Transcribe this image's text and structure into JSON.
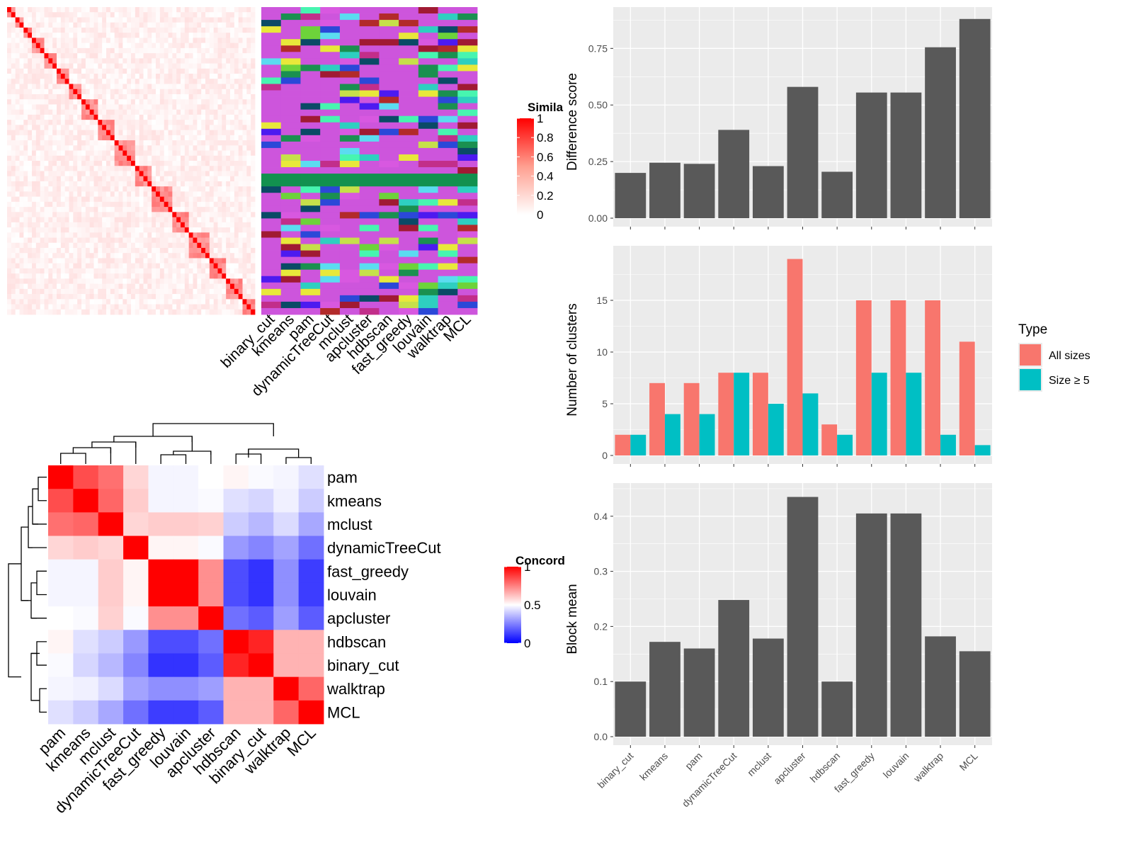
{
  "methods_order": [
    "binary_cut",
    "kmeans",
    "pam",
    "dynamicTreeCut",
    "mclust",
    "apcluster",
    "hdbscan",
    "fast_greedy",
    "louvain",
    "walktrap",
    "MCL"
  ],
  "similarity_legend": {
    "title": "Simila",
    "ticks": [
      "1",
      "0.8",
      "0.6",
      "0.4",
      "0.2",
      "0"
    ]
  },
  "concordance": {
    "legend_title": "Concord",
    "legend_ticks": [
      "1",
      "0.5",
      "0"
    ],
    "labels": [
      "pam",
      "kmeans",
      "mclust",
      "dynamicTreeCut",
      "fast_greedy",
      "louvain",
      "apcluster",
      "hdbscan",
      "binary_cut",
      "walktrap",
      "MCL"
    ],
    "matrix": [
      [
        1.0,
        0.85,
        0.78,
        0.58,
        0.48,
        0.48,
        0.5,
        0.52,
        0.49,
        0.48,
        0.44
      ],
      [
        0.85,
        1.0,
        0.8,
        0.6,
        0.48,
        0.48,
        0.49,
        0.44,
        0.42,
        0.47,
        0.4
      ],
      [
        0.78,
        0.8,
        1.0,
        0.58,
        0.6,
        0.6,
        0.59,
        0.4,
        0.36,
        0.43,
        0.33
      ],
      [
        0.58,
        0.6,
        0.58,
        1.0,
        0.52,
        0.52,
        0.49,
        0.3,
        0.26,
        0.32,
        0.22
      ],
      [
        0.48,
        0.48,
        0.6,
        0.52,
        1.0,
        1.0,
        0.72,
        0.15,
        0.1,
        0.28,
        0.12
      ],
      [
        0.48,
        0.48,
        0.6,
        0.52,
        1.0,
        1.0,
        0.72,
        0.15,
        0.1,
        0.28,
        0.12
      ],
      [
        0.5,
        0.49,
        0.59,
        0.49,
        0.72,
        0.72,
        1.0,
        0.22,
        0.18,
        0.31,
        0.18
      ],
      [
        0.52,
        0.44,
        0.4,
        0.3,
        0.15,
        0.15,
        0.22,
        1.0,
        0.93,
        0.65,
        0.65
      ],
      [
        0.49,
        0.42,
        0.36,
        0.26,
        0.1,
        0.1,
        0.18,
        0.93,
        1.0,
        0.65,
        0.65
      ],
      [
        0.48,
        0.47,
        0.43,
        0.32,
        0.28,
        0.28,
        0.31,
        0.65,
        0.65,
        1.0,
        0.8
      ],
      [
        0.44,
        0.4,
        0.33,
        0.22,
        0.12,
        0.12,
        0.18,
        0.65,
        0.65,
        0.8,
        1.0
      ]
    ]
  },
  "chart_data": [
    {
      "type": "bar",
      "ylabel": "Difference score",
      "categories": [
        "binary_cut",
        "kmeans",
        "pam",
        "dynamicTreeCut",
        "mclust",
        "apcluster",
        "hdbscan",
        "fast_greedy",
        "louvain",
        "walktrap",
        "MCL"
      ],
      "values": [
        0.2,
        0.245,
        0.24,
        0.39,
        0.23,
        0.58,
        0.205,
        0.555,
        0.555,
        0.755,
        0.88
      ],
      "ylim": [
        0,
        0.92
      ],
      "yticks": [
        0.0,
        0.25,
        0.5,
        0.75
      ],
      "ytick_labels": [
        "0.00",
        "0.25",
        "0.50",
        "0.75"
      ],
      "color": "#595959"
    },
    {
      "type": "bar",
      "ylabel": "Number of clusters",
      "categories": [
        "binary_cut",
        "kmeans",
        "pam",
        "dynamicTreeCut",
        "mclust",
        "apcluster",
        "hdbscan",
        "fast_greedy",
        "louvain",
        "walktrap",
        "MCL"
      ],
      "series": [
        {
          "name": "All sizes",
          "color": "#F8766D",
          "values": [
            2,
            7,
            7,
            8,
            8,
            19,
            3,
            15,
            15,
            15,
            11
          ]
        },
        {
          "name": "Size ≥ 5",
          "color": "#00BFC4",
          "values": [
            2,
            4,
            4,
            8,
            5,
            6,
            2,
            8,
            8,
            2,
            1
          ]
        }
      ],
      "legend_title": "Type",
      "legend_position": "right",
      "ylim": [
        0,
        20
      ],
      "yticks": [
        0,
        5,
        10,
        15
      ],
      "ytick_labels": [
        "0",
        "5",
        "10",
        "15"
      ]
    },
    {
      "type": "bar",
      "ylabel": "Block mean",
      "categories": [
        "binary_cut",
        "kmeans",
        "pam",
        "dynamicTreeCut",
        "mclust",
        "apcluster",
        "hdbscan",
        "fast_greedy",
        "louvain",
        "walktrap",
        "MCL"
      ],
      "values": [
        0.1,
        0.172,
        0.16,
        0.248,
        0.178,
        0.435,
        0.1,
        0.405,
        0.405,
        0.182,
        0.155
      ],
      "ylim": [
        0,
        0.455
      ],
      "yticks": [
        0.0,
        0.1,
        0.2,
        0.3,
        0.4
      ],
      "ytick_labels": [
        "0.0",
        "0.1",
        "0.2",
        "0.3",
        "0.4"
      ],
      "color": "#595959"
    }
  ]
}
